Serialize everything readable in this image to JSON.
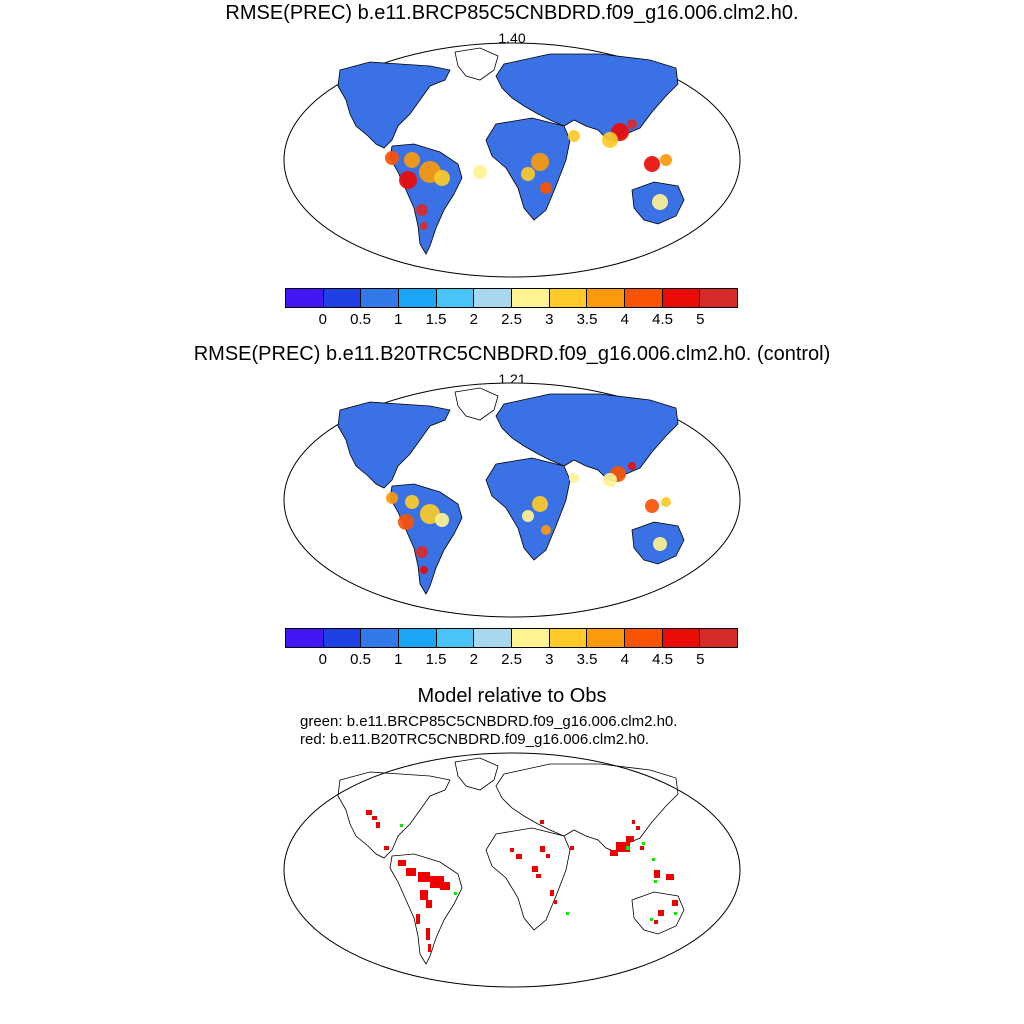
{
  "chart_data": [
    {
      "type": "heatmap",
      "title": "RMSE(PREC) b.e11.BRCP85C5CNBDRD.f09_g16.006.clm2.h0.",
      "subtitle": "1.40",
      "colorbar": {
        "labels": [
          "0",
          "0.5",
          "1",
          "1.5",
          "2",
          "2.5",
          "3",
          "3.5",
          "4",
          "4.5",
          "5"
        ],
        "colors": [
          "#4316f5",
          "#2040e6",
          "#3279ec",
          "#1aa5f5",
          "#4ac3f6",
          "#a7d8ee",
          "#fff293",
          "#fdca29",
          "#fb9a0d",
          "#fa5305",
          "#ea0c06",
          "#d72b2b"
        ]
      }
    },
    {
      "type": "heatmap",
      "title": "RMSE(PREC) b.e11.B20TRC5CNBDRD.f09_g16.006.clm2.h0. (control)",
      "subtitle": "1.21",
      "colorbar": {
        "labels": [
          "0",
          "0.5",
          "1",
          "1.5",
          "2",
          "2.5",
          "3",
          "3.5",
          "4",
          "4.5",
          "5"
        ],
        "colors": [
          "#4316f5",
          "#2040e6",
          "#3279ec",
          "#1aa5f5",
          "#4ac3f6",
          "#a7d8ee",
          "#fff293",
          "#fdca29",
          "#fb9a0d",
          "#fa5305",
          "#ea0c06",
          "#d72b2b"
        ]
      }
    },
    {
      "type": "heatmap",
      "title": "Model relative to Obs",
      "legend_lines": [
        "green: b.e11.BRCP85C5CNBDRD.f09_g16.006.clm2.h0.",
        "red: b.e11.B20TRC5CNBDRD.f09_g16.006.clm2.h0."
      ],
      "colors": {
        "green": "#00ee00",
        "red": "#ee0000"
      }
    }
  ]
}
